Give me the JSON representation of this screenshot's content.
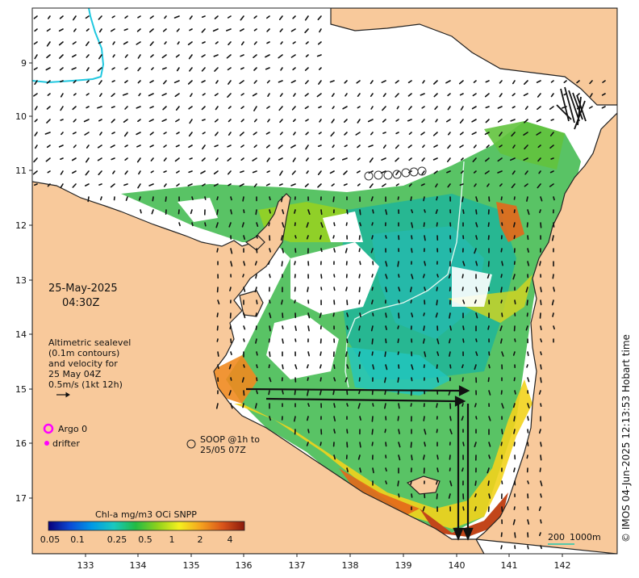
{
  "map": {
    "date": "25-May-2025",
    "time": "04:30Z",
    "legend_lines": [
      "Altimetric sealevel",
      "(0.1m contours)",
      "and velocity for",
      "25 May 04Z",
      "0.5m/s (1kt 12h)"
    ],
    "argo_label": "Argo 0",
    "drifter_label": "drifter",
    "soop_lines": [
      "SOOP @1h to",
      "25/05 07Z"
    ],
    "colorbar": {
      "title": "Chl-a mg/m3 OCi SNPP",
      "ticks": [
        "0.05",
        "0.1",
        "0.25",
        "0.5",
        "1",
        "2",
        "4"
      ],
      "stops": [
        "#08007a",
        "#0b4bd6",
        "#0099e6",
        "#19c8c0",
        "#22bb44",
        "#8ed11c",
        "#f5f01e",
        "#f5a21e",
        "#d9541a",
        "#8b1a0c"
      ]
    },
    "scale": {
      "left": "200",
      "right": "1000m"
    },
    "credit": "© IMOS 04-Jun-2025 12:13:53 Hobart time",
    "x_ticks": [
      "133",
      "134",
      "135",
      "136",
      "137",
      "138",
      "139",
      "140",
      "141",
      "142"
    ],
    "y_ticks": [
      "9",
      "10",
      "11",
      "12",
      "13",
      "14",
      "15",
      "16",
      "17"
    ],
    "colors": {
      "land": "#f8c99b",
      "land_edge": "#222222",
      "ocean": "#ffffff",
      "contour": "#dff7ee",
      "argo": "#ff00ff",
      "drifter": "#ff00ff",
      "depth_line": "#20c8e0"
    }
  }
}
